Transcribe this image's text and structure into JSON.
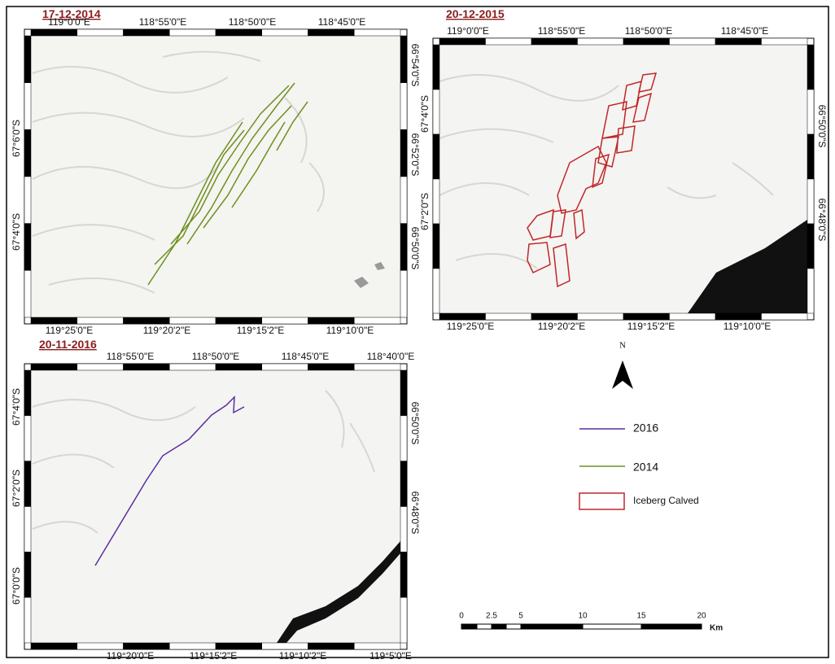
{
  "panels": [
    {
      "title": "17-12-2014",
      "top_labels": [
        "119°0'0\"E",
        "118°55'0\"E",
        "118°50'0\"E",
        "118°45'0\"E"
      ],
      "bottom_labels": [
        "119°25'0\"E",
        "119°20'2\"E",
        "119°15'2\"E",
        "119°10'0\"E"
      ],
      "left_labels": [
        "67°6'0\"S",
        "67°4'0\"S"
      ],
      "right_labels": [
        "66°54'0\"S",
        "66°52'0\"S",
        "66°50'0\"S"
      ]
    },
    {
      "title": "20-12-2015",
      "top_labels": [
        "119°0'0\"E",
        "118°55'0\"E",
        "118°50'0\"E",
        "118°45'0\"E"
      ],
      "bottom_labels": [
        "119°25'0\"E",
        "119°20'2\"E",
        "119°15'2\"E",
        "119°10'0\"E"
      ],
      "left_labels": [
        "67°4'0\"S",
        "67°2'0\"S"
      ],
      "right_labels": [
        "66°50'0\"S",
        "66°48'0\"S"
      ]
    },
    {
      "title": "20-11-2016",
      "top_labels": [
        "118°55'0\"E",
        "118°50'0\"E",
        "118°45'0\"E",
        "118°40'0\"E"
      ],
      "bottom_labels": [
        "119°20'0\"E",
        "119°15'2\"E",
        "119°10'2\"E",
        "119°5'0\"E"
      ],
      "left_labels": [
        "67°4'0\"S",
        "67°2'0\"S",
        "67°0'0\"S"
      ],
      "right_labels": [
        "66°50'0\"S",
        "66°48'0\"S"
      ]
    }
  ],
  "north": "N",
  "legend": [
    "2016",
    "2014",
    "Iceberg Calved"
  ],
  "scale_bar": {
    "ticks": [
      "0",
      "2.5",
      "5",
      "10",
      "15",
      "20"
    ],
    "unit": "Km"
  }
}
